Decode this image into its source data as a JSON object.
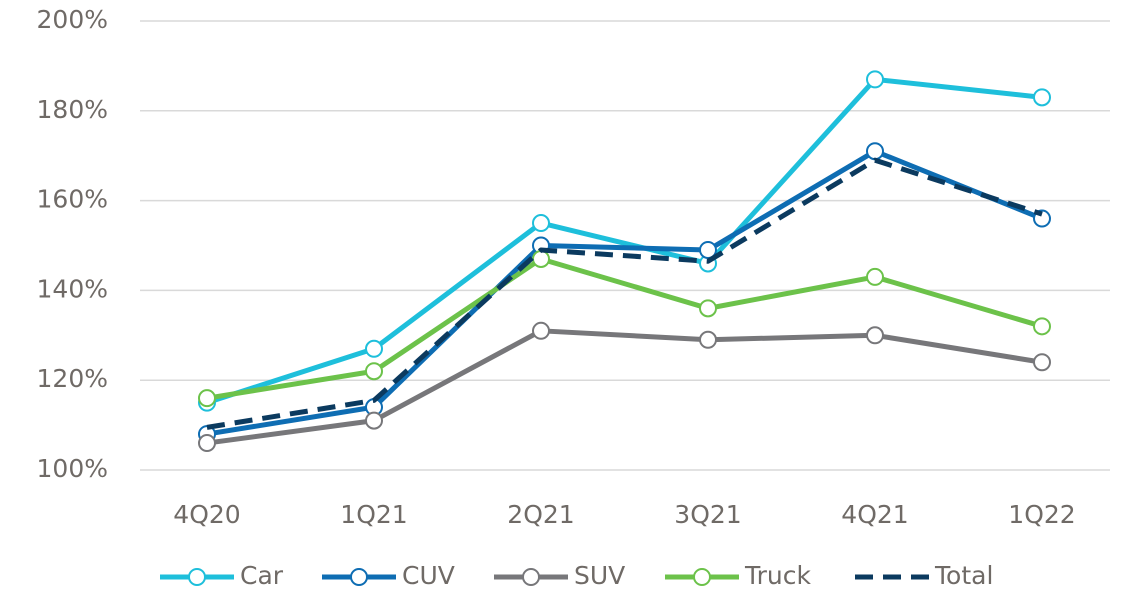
{
  "chart_data": {
    "type": "line",
    "categories": [
      "4Q20",
      "1Q21",
      "2Q21",
      "3Q21",
      "4Q21",
      "1Q22"
    ],
    "series": [
      {
        "name": "Car",
        "color": "#1ebfdb",
        "markers": true,
        "values": [
          115,
          127,
          155,
          146,
          187,
          183
        ]
      },
      {
        "name": "CUV",
        "color": "#0e6db3",
        "markers": true,
        "values": [
          108,
          114,
          150,
          149,
          171,
          156
        ]
      },
      {
        "name": "SUV",
        "color": "#77777a",
        "markers": true,
        "values": [
          106,
          111,
          131,
          129,
          130,
          124
        ]
      },
      {
        "name": "Truck",
        "color": "#6cc24a",
        "markers": true,
        "values": [
          116,
          122,
          147,
          136,
          143,
          132
        ]
      },
      {
        "name": "Total",
        "color": "#0b3a5f",
        "markers": false,
        "dashed": true,
        "values": [
          109.5,
          115.5,
          149,
          146.5,
          169,
          157
        ]
      }
    ],
    "ylim": [
      100,
      200
    ],
    "yticks": [
      {
        "value": 100,
        "label": "100%"
      },
      {
        "value": 120,
        "label": "120%"
      },
      {
        "value": 140,
        "label": "140%"
      },
      {
        "value": 160,
        "label": "160%"
      },
      {
        "value": 180,
        "label": "180%"
      },
      {
        "value": 200,
        "label": "200%"
      }
    ],
    "grid": true,
    "legend": "bottom"
  }
}
